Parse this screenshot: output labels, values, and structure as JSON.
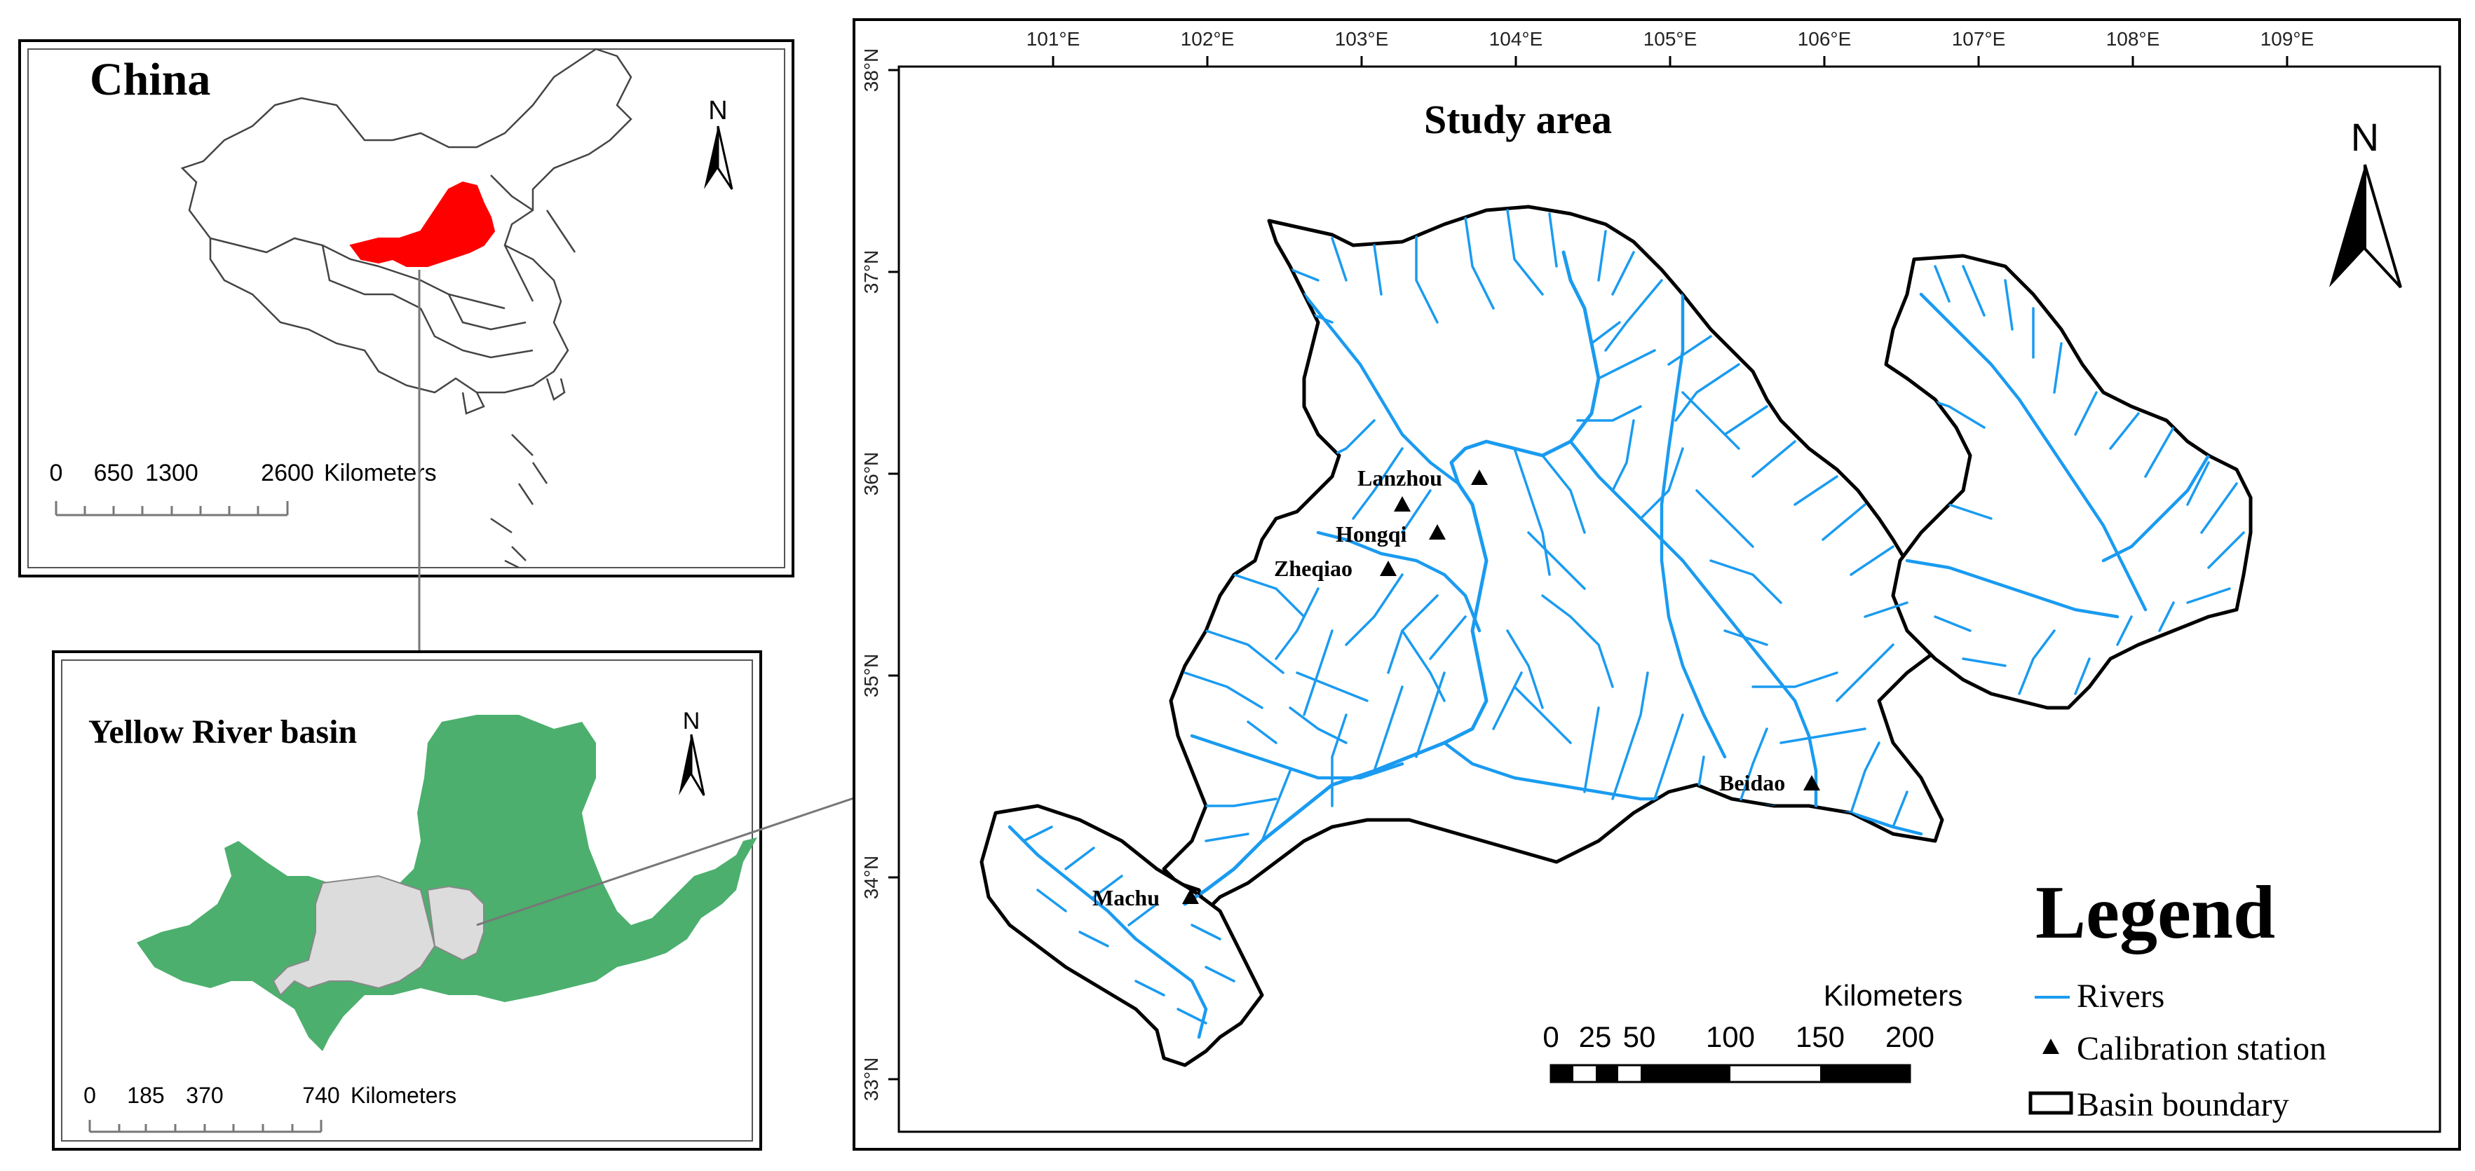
{
  "china_panel": {
    "title": "China",
    "north": "N",
    "scale_labels": [
      "0",
      "650",
      "1300",
      "2600"
    ],
    "scale_unit": "Kilometers",
    "highlight_color": "#ff0000"
  },
  "yellow_river_panel": {
    "title": "Yellow River basin",
    "north": "N",
    "scale_labels": [
      "0",
      "185",
      "370",
      "740"
    ],
    "scale_unit": "Kilometers",
    "basin_color": "#4caf6e",
    "study_area_color": "#dcdcdc"
  },
  "study_panel": {
    "title": "Study area",
    "north": "N",
    "lon_ticks": [
      "101°E",
      "102°E",
      "103°E",
      "104°E",
      "105°E",
      "106°E",
      "107°E",
      "108°E",
      "109°E"
    ],
    "lat_ticks": [
      "38°N",
      "37°N",
      "36°N",
      "35°N",
      "34°N",
      "33°N"
    ],
    "stations": [
      "Lanzhou",
      "Hongqi",
      "Zheqiao",
      "Beidao",
      "Machu"
    ],
    "scale_title": "Kilometers",
    "scale_labels": [
      "0",
      "25",
      "50",
      "100",
      "150",
      "200"
    ],
    "river_color": "#1a9bf0"
  },
  "legend": {
    "title": "Legend",
    "items": [
      {
        "symbol": "river-line",
        "label": "Rivers"
      },
      {
        "symbol": "triangle",
        "label": "Calibration station"
      },
      {
        "symbol": "rect",
        "label": "Basin boundary"
      }
    ]
  }
}
